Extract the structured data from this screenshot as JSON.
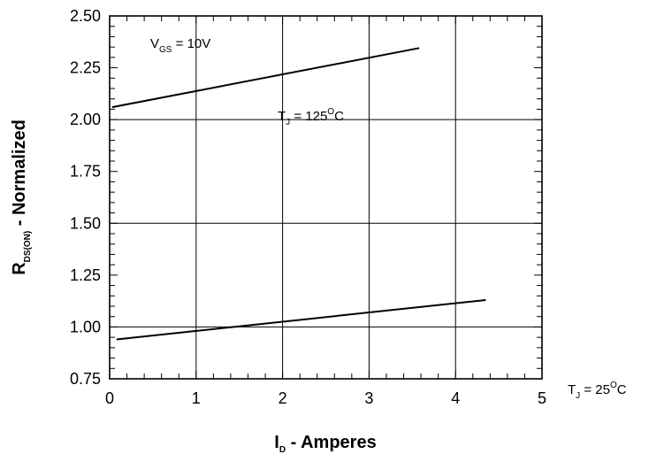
{
  "chart_data": {
    "type": "line",
    "xlabel": {
      "main": "I",
      "sub": "D",
      "rest": " - Amperes"
    },
    "ylabel": {
      "main": "R",
      "sub": "DS(ON)",
      "rest": " - Normalized"
    },
    "xlim": [
      0,
      5
    ],
    "ylim": [
      0.75,
      2.5
    ],
    "x_ticks": [
      "0",
      "1",
      "2",
      "3",
      "4",
      "5"
    ],
    "y_ticks": [
      "0.75",
      "1.00",
      "1.25",
      "1.50",
      "1.75",
      "2.00",
      "2.25",
      "2.50"
    ],
    "grid": true,
    "series": [
      {
        "x": [
          0.03,
          3.58
        ],
        "y": [
          2.06,
          2.345
        ]
      },
      {
        "x": [
          0.08,
          4.35
        ],
        "y": [
          0.94,
          1.13
        ]
      }
    ],
    "annotations": {
      "vgs": {
        "main": "V",
        "sub": "GS",
        "rest": " = 10V"
      },
      "tj_hot": {
        "main": "T",
        "sub": "J",
        "rest": " = 125",
        "sup": "O",
        "unit": "C"
      },
      "tj_cold": {
        "main": "T",
        "sub": "J",
        "rest": " = 25",
        "sup": "O",
        "unit": "C"
      }
    },
    "colors": {
      "line": "#000000",
      "grid": "#000000",
      "background": "#ffffff"
    }
  }
}
